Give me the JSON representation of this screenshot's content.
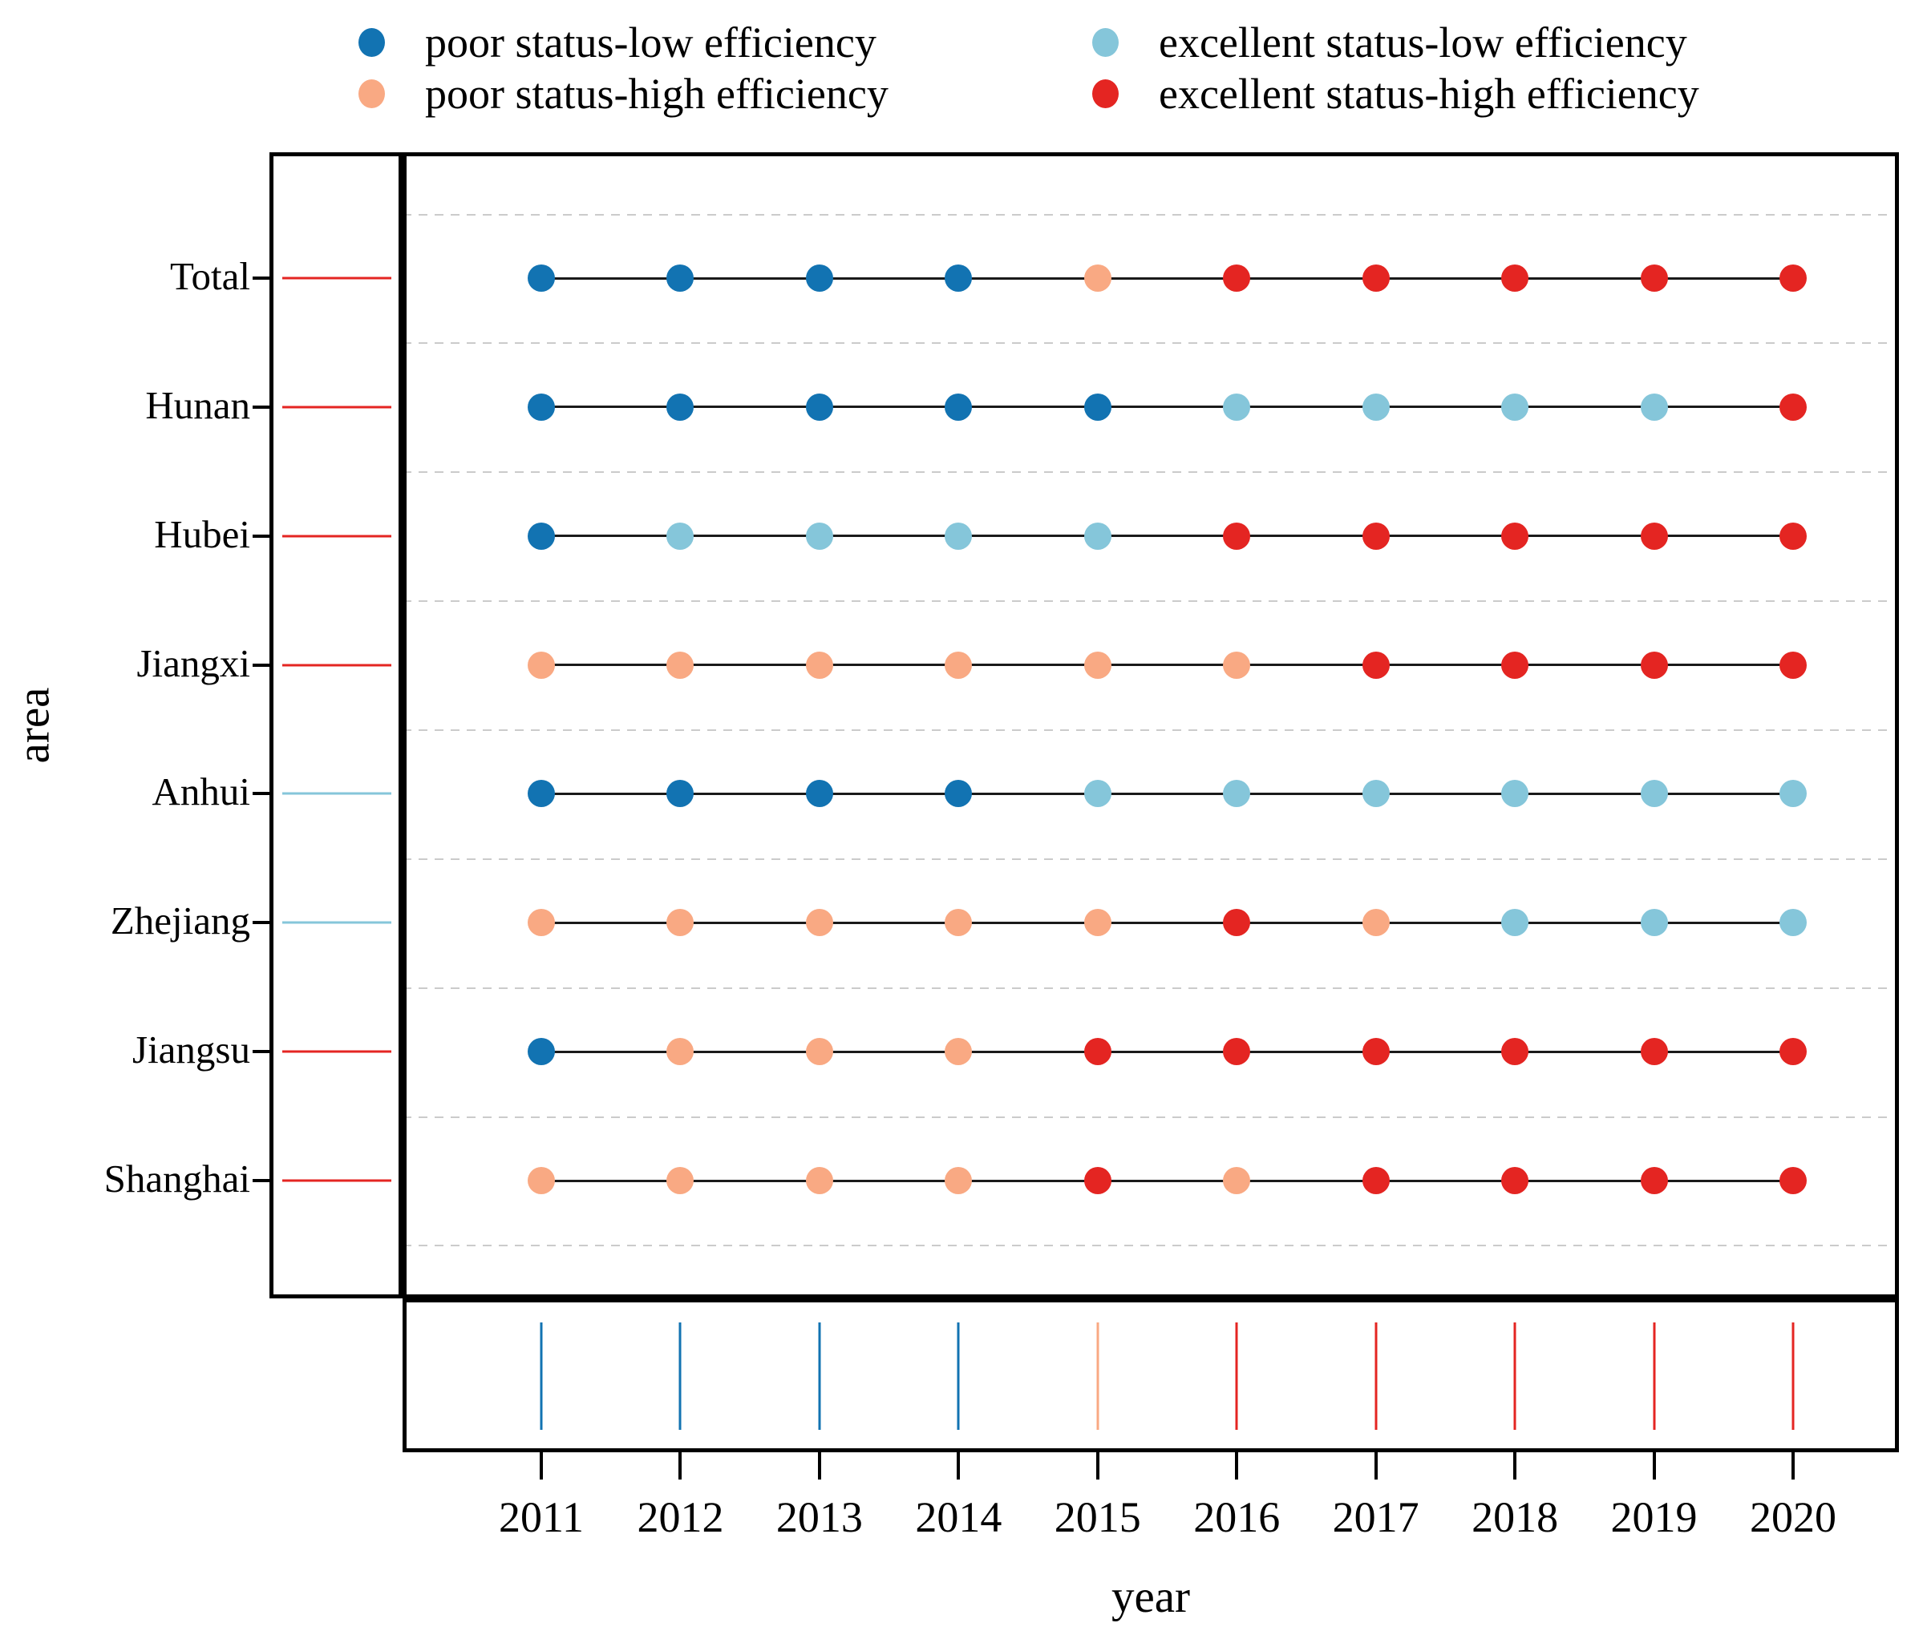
{
  "colors": {
    "PL": "#1273b2",
    "PH": "#f9a983",
    "EL": "#85c6da",
    "EH": "#e42522",
    "grid": "#cbcbcb",
    "row_line": "#1a1a1a",
    "frame": "#000000"
  },
  "legend": {
    "items": [
      {
        "code": "PL",
        "label": "poor status-low efficiency"
      },
      {
        "code": "EL",
        "label": "excellent status-low efficiency"
      },
      {
        "code": "PH",
        "label": "poor status-high efficiency"
      },
      {
        "code": "EH",
        "label": "excellent status-high efficiency"
      }
    ]
  },
  "chart_data": {
    "type": "scatter",
    "title": "",
    "xlabel": "year",
    "ylabel": "area",
    "x": [
      2011,
      2012,
      2013,
      2014,
      2015,
      2016,
      2017,
      2018,
      2019,
      2020
    ],
    "categories": {
      "PL": "poor status-low efficiency",
      "PH": "poor status-high efficiency",
      "EL": "excellent status-low efficiency",
      "EH": "excellent status-high efficiency"
    },
    "series": [
      {
        "area": "Total",
        "values": [
          "PL",
          "PL",
          "PL",
          "PL",
          "PH",
          "EH",
          "EH",
          "EH",
          "EH",
          "EH"
        ]
      },
      {
        "area": "Hunan",
        "values": [
          "PL",
          "PL",
          "PL",
          "PL",
          "PL",
          "EL",
          "EL",
          "EL",
          "EL",
          "EH"
        ]
      },
      {
        "area": "Hubei",
        "values": [
          "PL",
          "EL",
          "EL",
          "EL",
          "EL",
          "EH",
          "EH",
          "EH",
          "EH",
          "EH"
        ]
      },
      {
        "area": "Jiangxi",
        "values": [
          "PH",
          "PH",
          "PH",
          "PH",
          "PH",
          "PH",
          "EH",
          "EH",
          "EH",
          "EH"
        ]
      },
      {
        "area": "Anhui",
        "values": [
          "PL",
          "PL",
          "PL",
          "PL",
          "EL",
          "EL",
          "EL",
          "EL",
          "EL",
          "EL"
        ]
      },
      {
        "area": "Zhejiang",
        "values": [
          "PH",
          "PH",
          "PH",
          "PH",
          "PH",
          "EH",
          "PH",
          "EL",
          "EL",
          "EL"
        ]
      },
      {
        "area": "Jiangsu",
        "values": [
          "PL",
          "PH",
          "PH",
          "PH",
          "EH",
          "EH",
          "EH",
          "EH",
          "EH",
          "EH"
        ]
      },
      {
        "area": "Shanghai",
        "values": [
          "PH",
          "PH",
          "PH",
          "PH",
          "EH",
          "PH",
          "EH",
          "EH",
          "EH",
          "EH"
        ]
      }
    ],
    "area_marginal_ticks": [
      "EH",
      "EH",
      "EH",
      "EH",
      "EL",
      "EL",
      "EH",
      "EH"
    ],
    "year_marginal_ticks": [
      "PL",
      "PL",
      "PL",
      "PL",
      "PH",
      "EH",
      "EH",
      "EH",
      "EH",
      "EH"
    ],
    "grid": "horizontal-dashed",
    "legend_position": "top"
  }
}
